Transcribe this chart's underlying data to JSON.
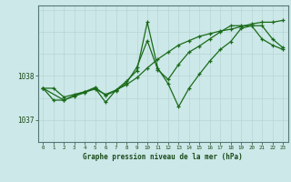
{
  "xlabel": "Graphe pression niveau de la mer (hPa)",
  "bg_color": "#cce8e8",
  "line_color": "#1a6b1a",
  "grid_v_color": "#b8d4d4",
  "grid_h_color": "#b8d4d4",
  "xlim": [
    -0.5,
    23.5
  ],
  "ylim": [
    1036.5,
    1039.6
  ],
  "yticks": [
    1037,
    1038
  ],
  "xticks": [
    0,
    1,
    2,
    3,
    4,
    5,
    6,
    7,
    8,
    9,
    10,
    11,
    12,
    13,
    14,
    15,
    16,
    17,
    18,
    19,
    20,
    21,
    22,
    23
  ],
  "s1_x": [
    0,
    1,
    2,
    3,
    4,
    5,
    6,
    7,
    8,
    9,
    10,
    11,
    12,
    13,
    14,
    15,
    16,
    17,
    18,
    19,
    20,
    21,
    22,
    23
  ],
  "s1_y": [
    1037.72,
    1037.72,
    1037.52,
    1037.58,
    1037.64,
    1037.7,
    1037.58,
    1037.68,
    1037.8,
    1037.96,
    1038.18,
    1038.38,
    1038.54,
    1038.7,
    1038.8,
    1038.9,
    1038.96,
    1039.02,
    1039.06,
    1039.12,
    1039.18,
    1039.22,
    1039.22,
    1039.26
  ],
  "s2_x": [
    0,
    1,
    2,
    3,
    4,
    5,
    6,
    7,
    8,
    9,
    10,
    11,
    12,
    13,
    14,
    15,
    16,
    17,
    18,
    19,
    20,
    21,
    22,
    23
  ],
  "s2_y": [
    1037.72,
    1037.45,
    1037.45,
    1037.54,
    1037.62,
    1037.72,
    1037.4,
    1037.68,
    1037.88,
    1038.12,
    1039.22,
    1038.18,
    1037.82,
    1037.3,
    1037.72,
    1038.04,
    1038.34,
    1038.6,
    1038.78,
    1039.08,
    1039.14,
    1039.14,
    1038.84,
    1038.64
  ],
  "s3_x": [
    0,
    2,
    3,
    4,
    5,
    6,
    7,
    8,
    9,
    10,
    11,
    12,
    13,
    14,
    15,
    16,
    17,
    18,
    19,
    20,
    21,
    22,
    23
  ],
  "s3_y": [
    1037.72,
    1037.45,
    1037.56,
    1037.64,
    1037.74,
    1037.56,
    1037.66,
    1037.84,
    1038.2,
    1038.8,
    1038.14,
    1037.92,
    1038.26,
    1038.54,
    1038.68,
    1038.84,
    1039.0,
    1039.14,
    1039.14,
    1039.14,
    1038.84,
    1038.7,
    1038.6
  ]
}
